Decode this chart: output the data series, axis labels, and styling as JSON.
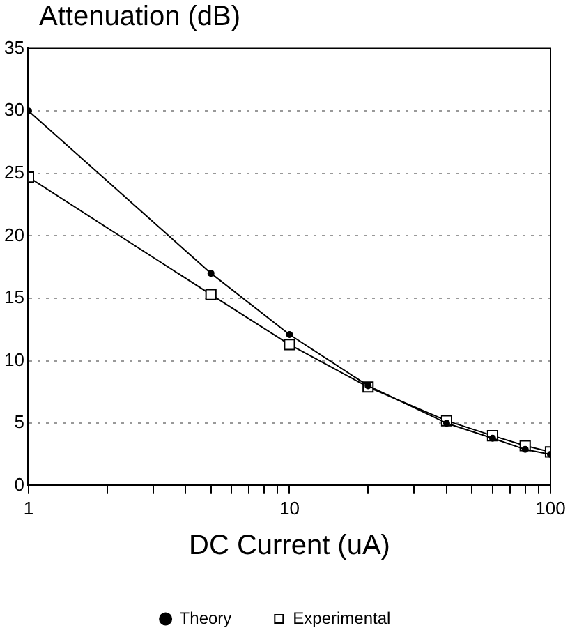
{
  "chart_data": {
    "type": "line",
    "ylabel": "Attenuation (dB)",
    "xlabel": "DC Current (uA)",
    "log": "x",
    "xlim": [
      1,
      100
    ],
    "xticks": [
      1,
      {
        "value": 2,
        "label": null
      },
      {
        "value": 3,
        "label": null
      },
      {
        "value": 4,
        "label": null
      },
      {
        "value": 5,
        "label": null
      },
      {
        "value": 6,
        "label": null
      },
      {
        "value": 7,
        "label": null
      },
      {
        "value": 8,
        "label": null
      },
      {
        "value": 9,
        "label": null
      },
      10,
      {
        "value": 20,
        "label": null
      },
      {
        "value": 30,
        "label": null
      },
      {
        "value": 40,
        "label": null
      },
      {
        "value": 50,
        "label": null
      },
      {
        "value": 60,
        "label": null
      },
      {
        "value": 70,
        "label": null
      },
      {
        "value": 80,
        "label": null
      },
      {
        "value": 90,
        "label": null
      },
      100
    ],
    "ylim": [
      0,
      35
    ],
    "yticks": [
      0,
      5,
      10,
      15,
      20,
      25,
      30,
      35
    ],
    "grid": "y",
    "legend": "bottom",
    "line_style": "solid",
    "x": [
      1,
      5,
      10,
      20,
      40,
      60,
      80,
      100
    ],
    "series": [
      {
        "name": "Theory",
        "color": "#000000",
        "marker": "circle",
        "values": [
          30,
          17,
          12.1,
          8,
          5,
          3.8,
          2.9,
          2.5
        ]
      },
      {
        "name": "Experimental",
        "color": "#000000",
        "marker": "square",
        "values": [
          24.7,
          15.3,
          11.3,
          7.9,
          5.2,
          4.0,
          3.2,
          2.7
        ]
      }
    ]
  }
}
